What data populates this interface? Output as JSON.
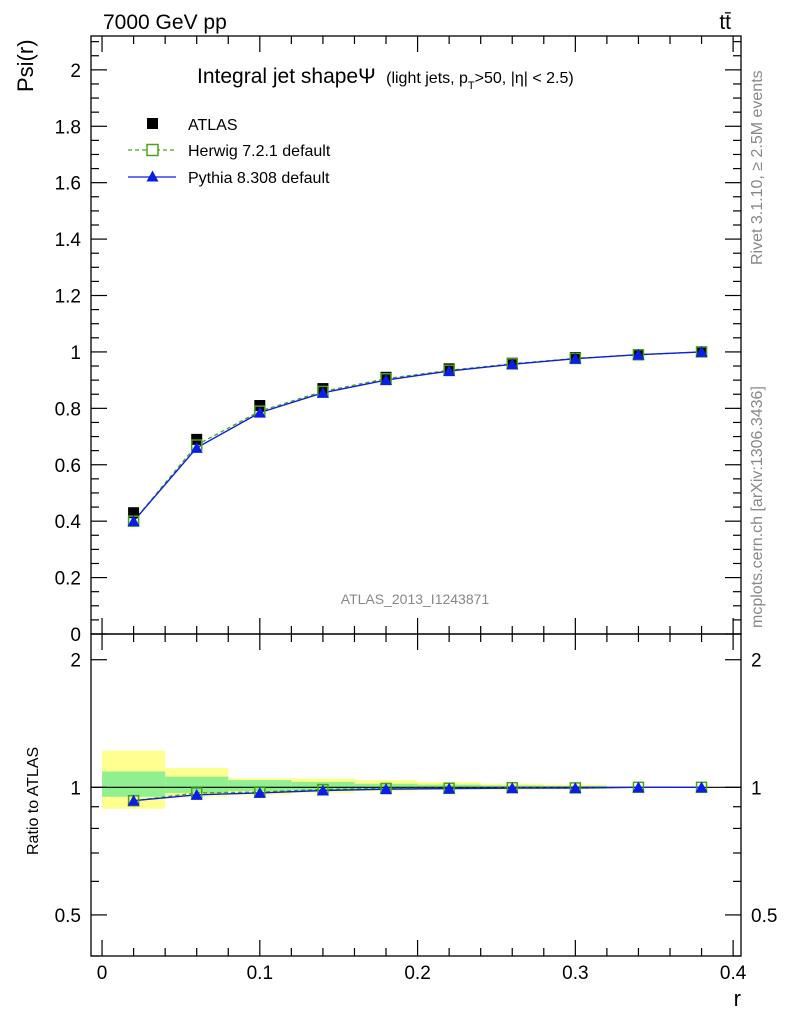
{
  "header": {
    "energy_label": "7000 GeV pp",
    "process_label": "tt̄"
  },
  "side": {
    "rivet_label": "Rivet 3.1.10, ≥ 2.5M events",
    "mcplots_label": "mcplots.cern.ch [arXiv:1306.3436]"
  },
  "watermark": "ATLAS_2013_I1243871",
  "colors": {
    "atlas": "#000000",
    "herwig": "#4aa21a",
    "pythia": "#0a1ee6",
    "band_inner": "#90f090",
    "band_outer": "#ffff90"
  },
  "chart_data": [
    {
      "type": "line",
      "title_main": "Integral jet shapeΨ",
      "title_sub": "(light jets, p",
      "title_sub_T": "T",
      "title_sub_rest": ">50, |η| < 2.5)",
      "ylabel": "Psi(r)",
      "xlim": [
        -0.007,
        0.405
      ],
      "ylim": [
        0,
        2.12
      ],
      "yticks": [
        "0",
        "0.2",
        "0.4",
        "0.6",
        "0.8",
        "1",
        "1.2",
        "1.4",
        "1.6",
        "1.8",
        "2"
      ],
      "ytick_values": [
        0,
        0.2,
        0.4,
        0.6,
        0.8,
        1,
        1.2,
        1.4,
        1.6,
        1.8,
        2
      ],
      "legend_position": "top-left",
      "x": [
        0.02,
        0.06,
        0.1,
        0.14,
        0.18,
        0.22,
        0.26,
        0.3,
        0.34,
        0.38
      ],
      "series": [
        {
          "name": "ATLAS",
          "style": "square",
          "values": [
            0.43,
            0.69,
            0.81,
            0.87,
            0.91,
            0.94,
            0.96,
            0.98,
            0.99,
            1.0
          ]
        },
        {
          "name": "Herwig 7.2.1 default",
          "style": "open-square-dashed",
          "values": [
            0.4,
            0.67,
            0.79,
            0.86,
            0.905,
            0.935,
            0.958,
            0.977,
            0.99,
            1.0
          ]
        },
        {
          "name": "Pythia 8.308 default",
          "style": "triangle-line",
          "values": [
            0.4,
            0.66,
            0.785,
            0.855,
            0.9,
            0.932,
            0.956,
            0.976,
            0.99,
            1.0
          ]
        }
      ]
    },
    {
      "type": "line",
      "xlabel": "r",
      "ylabel": "Ratio to ATLAS",
      "yscale": "log",
      "ylim": [
        0.4,
        2.3
      ],
      "yticks": [
        "0.5",
        "1",
        "2"
      ],
      "ytick_values": [
        0.5,
        1,
        2
      ],
      "xticks": [
        "0",
        "0.1",
        "0.2",
        "0.3",
        "0.4"
      ],
      "xtick_values": [
        0,
        0.1,
        0.2,
        0.3,
        0.4
      ],
      "x": [
        0.02,
        0.06,
        0.1,
        0.14,
        0.18,
        0.22,
        0.26,
        0.3,
        0.34,
        0.38
      ],
      "bands": [
        {
          "x0": 0.0,
          "x1": 0.04,
          "inner": [
            0.95,
            1.09
          ],
          "outer": [
            0.89,
            1.22
          ]
        },
        {
          "x0": 0.04,
          "x1": 0.08,
          "inner": [
            0.97,
            1.06
          ],
          "outer": [
            0.95,
            1.11
          ]
        },
        {
          "x0": 0.08,
          "x1": 0.12,
          "inner": [
            0.98,
            1.04
          ],
          "outer": [
            0.96,
            1.05
          ]
        },
        {
          "x0": 0.12,
          "x1": 0.16,
          "inner": [
            0.985,
            1.03
          ],
          "outer": [
            0.97,
            1.05
          ]
        },
        {
          "x0": 0.16,
          "x1": 0.2,
          "inner": [
            0.99,
            1.02
          ],
          "outer": [
            0.98,
            1.04
          ]
        },
        {
          "x0": 0.2,
          "x1": 0.24,
          "inner": [
            0.99,
            1.015
          ],
          "outer": [
            0.985,
            1.03
          ]
        },
        {
          "x0": 0.24,
          "x1": 0.28,
          "inner": [
            0.993,
            1.01
          ],
          "outer": [
            0.985,
            1.02
          ]
        },
        {
          "x0": 0.28,
          "x1": 0.32,
          "inner": [
            0.995,
            1.008
          ],
          "outer": [
            0.99,
            1.015
          ]
        },
        {
          "x0": 0.32,
          "x1": 0.36,
          "inner": [
            0.998,
            1.003
          ],
          "outer": [
            0.996,
            1.005
          ]
        },
        {
          "x0": 0.36,
          "x1": 0.4,
          "inner": [
            0.999,
            1.001
          ],
          "outer": [
            0.998,
            1.002
          ]
        }
      ],
      "series": [
        {
          "name": "Herwig 7.2.1 default",
          "values": [
            0.93,
            0.97,
            0.975,
            0.988,
            0.994,
            0.995,
            0.998,
            0.997,
            1.0,
            1.0
          ]
        },
        {
          "name": "Pythia 8.308 default",
          "values": [
            0.93,
            0.96,
            0.97,
            0.983,
            0.99,
            0.993,
            0.996,
            0.996,
            1.0,
            1.0
          ]
        }
      ]
    }
  ]
}
